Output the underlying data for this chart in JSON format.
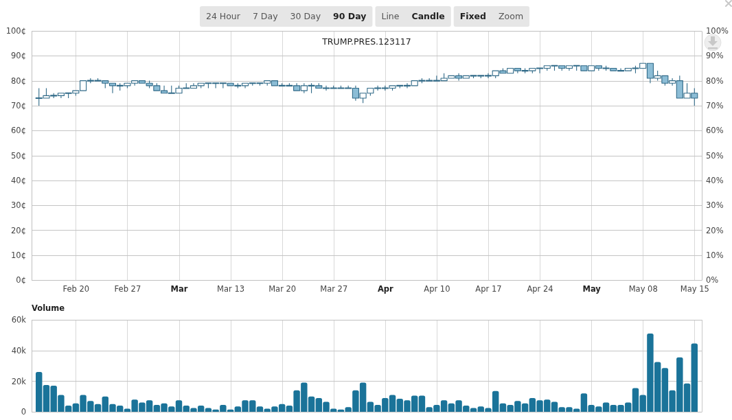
{
  "chart_data": [
    {
      "type": "candlestick",
      "title": "TRUMP.PRES.123117",
      "annotations": [
        "24 Hour",
        "7 Day",
        "30 Day",
        "90 Day",
        "Line",
        "Candle",
        "Fixed",
        "Zoom"
      ],
      "x": [
        "--02-15",
        "--02-16",
        "--02-17",
        "--02-18",
        "--02-19",
        "--02-20",
        "--02-21",
        "--02-22",
        "--02-23",
        "--02-24",
        "--02-25",
        "--02-26",
        "--02-27",
        "--02-28",
        "--03-01",
        "--03-02",
        "--03-03",
        "--03-04",
        "--03-05",
        "--03-06",
        "--03-07",
        "--03-08",
        "--03-09",
        "--03-10",
        "--03-11",
        "--03-12",
        "--03-13",
        "--03-14",
        "--03-15",
        "--03-16",
        "--03-17",
        "--03-18",
        "--03-19",
        "--03-20",
        "--03-21",
        "--03-22",
        "--03-23",
        "--03-24",
        "--03-25",
        "--03-26",
        "--03-27",
        "--03-28",
        "--03-29",
        "--03-30",
        "--03-31",
        "--04-01",
        "--04-02",
        "--04-03",
        "--04-04",
        "--04-05",
        "--04-06",
        "--04-07",
        "--04-08",
        "--04-09",
        "--04-10",
        "--04-11",
        "--04-12",
        "--04-13",
        "--04-14",
        "--04-15",
        "--04-16",
        "--04-17",
        "--04-18",
        "--04-19",
        "--04-20",
        "--04-21",
        "--04-22",
        "--04-23",
        "--04-24",
        "--04-25",
        "--04-26",
        "--04-27",
        "--04-28",
        "--04-29",
        "--04-30",
        "--05-01",
        "--05-02",
        "--05-03",
        "--05-04",
        "--05-05",
        "--05-06",
        "--05-07",
        "--05-08",
        "--05-09",
        "--05-10",
        "--05-11",
        "--05-12",
        "--05-13",
        "--05-14",
        "--05-15"
      ],
      "ohlc": [
        [
          73,
          77,
          70,
          73
        ],
        [
          73,
          77,
          73,
          74
        ],
        [
          74,
          75,
          73,
          74
        ],
        [
          74,
          75,
          73,
          75
        ],
        [
          75,
          75,
          73,
          75
        ],
        [
          75,
          76,
          74,
          76
        ],
        [
          76,
          80,
          76,
          80
        ],
        [
          80,
          81,
          79,
          80
        ],
        [
          80,
          81,
          80,
          80
        ],
        [
          80,
          80,
          77,
          79
        ],
        [
          79,
          79,
          75,
          78
        ],
        [
          78,
          79,
          76,
          78
        ],
        [
          78,
          79,
          77,
          79
        ],
        [
          79,
          80,
          78,
          80
        ],
        [
          80,
          80,
          79,
          79
        ],
        [
          79,
          80,
          77,
          78
        ],
        [
          78,
          79,
          76,
          76
        ],
        [
          76,
          78,
          75,
          75
        ],
        [
          75,
          78,
          75,
          75
        ],
        [
          75,
          78,
          75,
          77
        ],
        [
          77,
          79,
          77,
          77
        ],
        [
          77,
          79,
          77,
          78
        ],
        [
          78,
          79,
          77,
          79
        ],
        [
          79,
          79,
          77,
          79
        ],
        [
          79,
          79,
          77,
          79
        ],
        [
          79,
          79,
          77,
          79
        ],
        [
          79,
          79,
          78,
          78
        ],
        [
          78,
          79,
          77,
          78
        ],
        [
          78,
          79,
          77,
          79
        ],
        [
          79,
          79,
          78,
          79
        ],
        [
          79,
          79,
          78,
          79
        ],
        [
          79,
          80,
          78,
          80
        ],
        [
          80,
          80,
          78,
          78
        ],
        [
          78,
          79,
          78,
          78
        ],
        [
          78,
          79,
          78,
          78
        ],
        [
          78,
          79,
          76,
          76
        ],
        [
          76,
          79,
          75,
          78
        ],
        [
          78,
          79,
          75,
          78
        ],
        [
          78,
          79,
          77,
          77
        ],
        [
          77,
          78,
          76,
          77
        ],
        [
          77,
          78,
          77,
          77
        ],
        [
          77,
          78,
          77,
          77
        ],
        [
          77,
          78,
          77,
          77
        ],
        [
          77,
          78,
          72,
          73
        ],
        [
          73,
          75,
          71,
          75
        ],
        [
          75,
          77,
          74,
          77
        ],
        [
          77,
          78,
          76,
          77
        ],
        [
          77,
          78,
          76,
          77
        ],
        [
          77,
          78,
          76,
          78
        ],
        [
          78,
          78,
          77,
          78
        ],
        [
          78,
          79,
          77,
          78
        ],
        [
          78,
          80,
          78,
          80
        ],
        [
          80,
          81,
          79,
          80
        ],
        [
          80,
          81,
          80,
          80
        ],
        [
          80,
          82,
          80,
          80
        ],
        [
          80,
          83,
          80,
          81
        ],
        [
          81,
          82,
          81,
          82
        ],
        [
          82,
          83,
          80,
          81
        ],
        [
          81,
          82,
          81,
          82
        ],
        [
          82,
          82,
          81,
          82
        ],
        [
          82,
          82,
          81,
          82
        ],
        [
          82,
          83,
          81,
          82
        ],
        [
          82,
          84,
          81,
          84
        ],
        [
          84,
          85,
          83,
          83
        ],
        [
          83,
          85,
          83,
          85
        ],
        [
          85,
          85,
          83,
          84
        ],
        [
          84,
          85,
          83,
          84
        ],
        [
          84,
          85,
          83,
          85
        ],
        [
          85,
          85,
          83,
          85
        ],
        [
          85,
          86,
          84,
          86
        ],
        [
          86,
          86,
          84,
          86
        ],
        [
          86,
          86,
          84,
          85
        ],
        [
          85,
          86,
          84,
          86
        ],
        [
          86,
          86,
          84,
          86
        ],
        [
          86,
          86,
          84,
          84
        ],
        [
          84,
          86,
          84,
          86
        ],
        [
          86,
          86,
          84,
          85
        ],
        [
          85,
          86,
          84,
          85
        ],
        [
          85,
          85,
          84,
          84
        ],
        [
          84,
          85,
          84,
          84
        ],
        [
          84,
          85,
          84,
          85
        ],
        [
          85,
          86,
          83,
          85
        ],
        [
          85,
          87,
          85,
          87
        ],
        [
          87,
          87,
          79,
          81
        ],
        [
          81,
          84,
          80,
          82
        ],
        [
          82,
          82,
          78,
          79
        ],
        [
          79,
          81,
          78,
          80
        ],
        [
          80,
          82,
          73,
          73
        ],
        [
          73,
          79,
          73,
          75
        ],
        [
          75,
          77,
          70,
          73
        ]
      ],
      "colors": [
        "#306a88",
        "#306a88",
        "#306a88",
        "#306a88",
        "#306a88",
        "#306a88",
        "#306a88",
        "#306a88",
        "#306a88",
        "#8cbdd6",
        "#8cbdd6",
        "#306a88",
        "#306a88",
        "#306a88",
        "#8cbdd6",
        "#8cbdd6",
        "#8cbdd6",
        "#8cbdd6",
        "#306a88",
        "#306a88",
        "#306a88",
        "#306a88",
        "#306a88",
        "#306a88",
        "#306a88",
        "#306a88",
        "#8cbdd6",
        "#306a88",
        "#306a88",
        "#306a88",
        "#306a88",
        "#306a88",
        "#8cbdd6",
        "#306a88",
        "#306a88",
        "#8cbdd6",
        "#306a88",
        "#306a88",
        "#8cbdd6",
        "#306a88",
        "#306a88",
        "#306a88",
        "#306a88",
        "#8cbdd6",
        "#306a88",
        "#306a88",
        "#306a88",
        "#306a88",
        "#306a88",
        "#306a88",
        "#306a88",
        "#306a88",
        "#306a88",
        "#306a88",
        "#306a88",
        "#306a88",
        "#306a88",
        "#8cbdd6",
        "#306a88",
        "#306a88",
        "#306a88",
        "#306a88",
        "#306a88",
        "#8cbdd6",
        "#306a88",
        "#8cbdd6",
        "#306a88",
        "#306a88",
        "#306a88",
        "#306a88",
        "#306a88",
        "#8cbdd6",
        "#306a88",
        "#306a88",
        "#8cbdd6",
        "#306a88",
        "#8cbdd6",
        "#306a88",
        "#8cbdd6",
        "#306a88",
        "#306a88",
        "#306a88",
        "#306a88",
        "#8cbdd6",
        "#306a88",
        "#8cbdd6",
        "#306a88",
        "#8cbdd6",
        "#306a88",
        "#8cbdd6"
      ],
      "xlim": [
        "--02-14",
        "--05-16"
      ],
      "xticks": [
        {
          "value": "--02-20",
          "label": "Feb 20"
        },
        {
          "value": "--02-27",
          "label": "Feb 27"
        },
        {
          "value": "--03-06",
          "label": "Mar"
        },
        {
          "value": "--03-13",
          "label": "Mar 13"
        },
        {
          "value": "--03-20",
          "label": "Mar 20"
        },
        {
          "value": "--03-27",
          "label": "Mar 27"
        },
        {
          "value": "--04-03",
          "label": "Apr"
        },
        {
          "value": "--04-10",
          "label": "Apr 10"
        },
        {
          "value": "--04-17",
          "label": "Apr 17"
        },
        {
          "value": "--04-24",
          "label": "Apr 24"
        },
        {
          "value": "--05-01",
          "label": "May"
        },
        {
          "value": "--05-08",
          "label": "May 08"
        },
        {
          "value": "--05-15",
          "label": "May 15"
        }
      ],
      "ylim": [
        0,
        100
      ],
      "yticks": [
        {
          "value": 0,
          "label": "0¢"
        },
        {
          "value": 10,
          "label": "10¢"
        },
        {
          "value": 20,
          "label": "20¢"
        },
        {
          "value": 30,
          "label": "30¢"
        },
        {
          "value": 40,
          "label": "40¢"
        },
        {
          "value": 50,
          "label": "50¢"
        },
        {
          "value": 60,
          "label": "60¢"
        },
        {
          "value": 70,
          "label": "70¢"
        },
        {
          "value": 80,
          "label": "80¢"
        },
        {
          "value": 90,
          "label": "90¢"
        },
        {
          "value": 100,
          "label": "100¢"
        }
      ],
      "y2lim": [
        0,
        100
      ],
      "y2ticks": [
        {
          "value": 0,
          "label": "0%"
        },
        {
          "value": 10,
          "label": "10%"
        },
        {
          "value": 20,
          "label": "20%"
        },
        {
          "value": 30,
          "label": "30%"
        },
        {
          "value": 40,
          "label": "40%"
        },
        {
          "value": 50,
          "label": "50%"
        },
        {
          "value": 60,
          "label": "60%"
        },
        {
          "value": 70,
          "label": "70%"
        },
        {
          "value": 80,
          "label": "80%"
        },
        {
          "value": 90,
          "label": "90%"
        },
        {
          "value": 100,
          "label": "100%"
        }
      ],
      "grid": true
    },
    {
      "type": "bar",
      "title": "Volume",
      "x": [
        "--02-15",
        "--02-16",
        "--02-17",
        "--02-18",
        "--02-19",
        "--02-20",
        "--02-21",
        "--02-22",
        "--02-23",
        "--02-24",
        "--02-25",
        "--02-26",
        "--02-27",
        "--02-28",
        "--03-01",
        "--03-02",
        "--03-03",
        "--03-04",
        "--03-05",
        "--03-06",
        "--03-07",
        "--03-08",
        "--03-09",
        "--03-10",
        "--03-11",
        "--03-12",
        "--03-13",
        "--03-14",
        "--03-15",
        "--03-16",
        "--03-17",
        "--03-18",
        "--03-19",
        "--03-20",
        "--03-21",
        "--03-22",
        "--03-23",
        "--03-24",
        "--03-25",
        "--03-26",
        "--03-27",
        "--03-28",
        "--03-29",
        "--03-30",
        "--03-31",
        "--04-01",
        "--04-02",
        "--04-03",
        "--04-04",
        "--04-05",
        "--04-06",
        "--04-07",
        "--04-08",
        "--04-09",
        "--04-10",
        "--04-11",
        "--04-12",
        "--04-13",
        "--04-14",
        "--04-15",
        "--04-16",
        "--04-17",
        "--04-18",
        "--04-19",
        "--04-20",
        "--04-21",
        "--04-22",
        "--04-23",
        "--04-24",
        "--04-25",
        "--04-26",
        "--04-27",
        "--04-28",
        "--04-29",
        "--04-30",
        "--05-01",
        "--05-02",
        "--05-03",
        "--05-04",
        "--05-05",
        "--05-06",
        "--05-07",
        "--05-08",
        "--05-09",
        "--05-10",
        "--05-11",
        "--05-12",
        "--05-13",
        "--05-14",
        "--05-15"
      ],
      "values": [
        26000,
        17500,
        17000,
        11000,
        4000,
        5500,
        11000,
        7000,
        5000,
        10000,
        5000,
        4000,
        2000,
        8000,
        6000,
        7500,
        4500,
        5500,
        3500,
        7500,
        4000,
        2500,
        4000,
        2500,
        1500,
        4500,
        1500,
        3500,
        7500,
        7500,
        3500,
        2000,
        3500,
        5000,
        4000,
        14000,
        19000,
        10000,
        9000,
        6500,
        2000,
        1500,
        3000,
        14000,
        19000,
        6500,
        4500,
        9000,
        11000,
        8500,
        7500,
        10500,
        10500,
        3000,
        4500,
        7500,
        5500,
        7500,
        4000,
        2500,
        3500,
        2500,
        13500,
        5500,
        4500,
        7000,
        5500,
        9000,
        7500,
        8000,
        6500,
        3000,
        3000,
        2000,
        12000,
        4500,
        3500,
        6000,
        4500,
        4500,
        6000,
        15500,
        11000,
        51000,
        32500,
        28500,
        14000,
        35500,
        18500,
        44500
      ],
      "color": "#1a7399",
      "xlim": [
        "--02-14",
        "--05-16"
      ],
      "xticks": [
        {
          "value": "--02-20",
          "label": null
        },
        {
          "value": "--02-27",
          "label": null
        },
        {
          "value": "--03-06",
          "label": null
        },
        {
          "value": "--03-13",
          "label": null
        },
        {
          "value": "--03-20",
          "label": null
        },
        {
          "value": "--03-27",
          "label": null
        },
        {
          "value": "--04-03",
          "label": null
        },
        {
          "value": "--04-10",
          "label": null
        },
        {
          "value": "--04-17",
          "label": null
        },
        {
          "value": "--04-24",
          "label": null
        },
        {
          "value": "--05-01",
          "label": null
        },
        {
          "value": "--05-08",
          "label": null
        },
        {
          "value": "--05-15",
          "label": null
        }
      ],
      "ylim": [
        0,
        60000
      ],
      "yticks": [
        0,
        {
          "value": 20000,
          "label": "20k"
        },
        {
          "value": 40000,
          "label": "40k"
        },
        {
          "value": 60000,
          "label": "60k"
        }
      ],
      "tick_labels": "y",
      "grid": true
    }
  ]
}
